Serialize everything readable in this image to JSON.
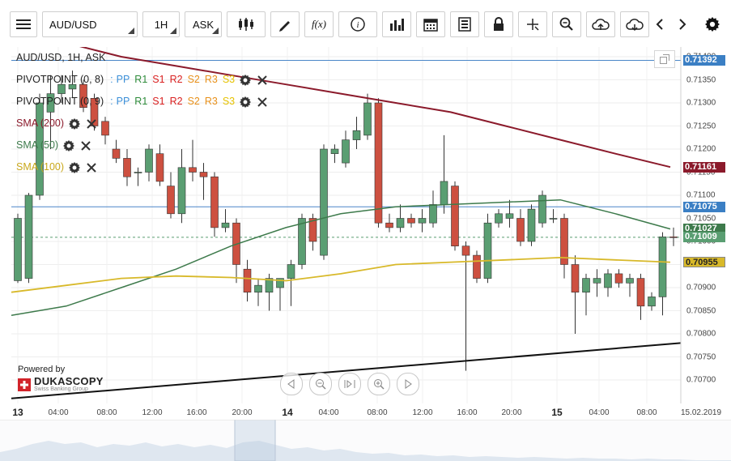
{
  "toolbar": {
    "menu_icon": "hamburger-icon",
    "symbol": "AUD/USD",
    "timeframe": "1H",
    "side": "ASK",
    "tools": [
      "candles-icon",
      "pencil-icon",
      "function-icon",
      "info-icon",
      "bars-icon",
      "calendar-icon",
      "report-icon",
      "lock-icon",
      "crosshair-icon",
      "zoom-icon",
      "cloud-upload-icon",
      "cloud-download-icon",
      "chevron-left-icon",
      "chevron-right-icon",
      "gear-icon"
    ],
    "fx_label": "f(x)"
  },
  "legend": {
    "title": "AUD/USD, 1H, ASK",
    "pivot1": "PIVOTPOINT (0, 8)",
    "pivot2": "PIVOTPOINT (0, 9)",
    "pivot_colon": ":",
    "pivot_levels": [
      {
        "label": "PP",
        "color": "#3b8fd8"
      },
      {
        "label": "R1",
        "color": "#2e8b3a"
      },
      {
        "label": "S1",
        "color": "#d92020"
      },
      {
        "label": "R2",
        "color": "#d92020"
      },
      {
        "label": "S2",
        "color": "#e8901a"
      },
      {
        "label": "R3",
        "color": "#e8901a"
      },
      {
        "label": "S3",
        "color": "#e6c200"
      }
    ],
    "sma200": "SMA (200)",
    "sma50": "SMA (50)",
    "sma100": "SMA (100)"
  },
  "colors": {
    "up": "#5a9e72",
    "down": "#cd5040",
    "sma200": "#8b1a2b",
    "sma50": "#3d7a4b",
    "sma100": "#d8b92a",
    "hline": "#4a86c8",
    "trend": "#111111"
  },
  "price_axis": {
    "ticks": [
      "0.71400",
      "0.71350",
      "0.71300",
      "0.71250",
      "0.71200",
      "0.71150",
      "0.71100",
      "0.71050",
      "0.71000",
      "0.70950",
      "0.70900",
      "0.70850",
      "0.70800",
      "0.70750",
      "0.70700"
    ],
    "tags": [
      {
        "label": "0.71392",
        "color": "#3b7fc4",
        "price": 0.71392
      },
      {
        "label": "0.71161",
        "color": "#8b1a2b",
        "price": 0.71161
      },
      {
        "label": "0.71075",
        "color": "#3b7fc4",
        "price": 0.71075
      },
      {
        "label": "0.71027",
        "color": "#3d7a4b",
        "price": 0.71027
      },
      {
        "label": "0.71009",
        "color": "#5a9e72",
        "price": 0.71009
      },
      {
        "label": "0.70955",
        "color": "#d8b92a",
        "price": 0.70955
      }
    ]
  },
  "time_axis": [
    {
      "label": "13",
      "day": true
    },
    {
      "label": "04:00"
    },
    {
      "label": "08:00"
    },
    {
      "label": "12:00"
    },
    {
      "label": "16:00"
    },
    {
      "label": "20:00"
    },
    {
      "label": "14",
      "day": true
    },
    {
      "label": "04:00"
    },
    {
      "label": "08:00"
    },
    {
      "label": "12:00"
    },
    {
      "label": "16:00"
    },
    {
      "label": "20:00"
    },
    {
      "label": "15",
      "day": true
    },
    {
      "label": "04:00"
    },
    {
      "label": "08:00"
    },
    {
      "label": "15.02.2019"
    }
  ],
  "branding": {
    "powered": "Powered by",
    "name": "DUKASCOPY",
    "tagline": "Swiss Banking Group"
  },
  "chart_data": {
    "type": "candlestick",
    "horizontal_lines": [
      0.71392,
      0.71075
    ],
    "candles": [
      {
        "o": 0.70915,
        "h": 0.7106,
        "l": 0.7091,
        "c": 0.7105
      },
      {
        "o": 0.7092,
        "h": 0.71105,
        "l": 0.7091,
        "c": 0.711
      },
      {
        "o": 0.711,
        "h": 0.7132,
        "l": 0.7109,
        "c": 0.713
      },
      {
        "o": 0.7128,
        "h": 0.7136,
        "l": 0.712,
        "c": 0.7132
      },
      {
        "o": 0.7132,
        "h": 0.7136,
        "l": 0.713,
        "c": 0.7134
      },
      {
        "o": 0.7133,
        "h": 0.7137,
        "l": 0.7131,
        "c": 0.7134
      },
      {
        "o": 0.7134,
        "h": 0.7135,
        "l": 0.7128,
        "c": 0.7129
      },
      {
        "o": 0.7131,
        "h": 0.7132,
        "l": 0.7124,
        "c": 0.7125
      },
      {
        "o": 0.7126,
        "h": 0.7127,
        "l": 0.7121,
        "c": 0.7123
      },
      {
        "o": 0.712,
        "h": 0.7122,
        "l": 0.7117,
        "c": 0.7118
      },
      {
        "o": 0.7118,
        "h": 0.712,
        "l": 0.7112,
        "c": 0.7114
      },
      {
        "o": 0.7115,
        "h": 0.7116,
        "l": 0.7112,
        "c": 0.7115
      },
      {
        "o": 0.7115,
        "h": 0.7121,
        "l": 0.7113,
        "c": 0.712
      },
      {
        "o": 0.7119,
        "h": 0.7121,
        "l": 0.7112,
        "c": 0.7113
      },
      {
        "o": 0.7112,
        "h": 0.7115,
        "l": 0.7105,
        "c": 0.7106
      },
      {
        "o": 0.7106,
        "h": 0.712,
        "l": 0.7104,
        "c": 0.7116
      },
      {
        "o": 0.7116,
        "h": 0.7122,
        "l": 0.7113,
        "c": 0.7115
      },
      {
        "o": 0.7115,
        "h": 0.7117,
        "l": 0.7109,
        "c": 0.7114
      },
      {
        "o": 0.7114,
        "h": 0.7115,
        "l": 0.7101,
        "c": 0.7103
      },
      {
        "o": 0.7103,
        "h": 0.7107,
        "l": 0.7102,
        "c": 0.7104
      },
      {
        "o": 0.7104,
        "h": 0.7105,
        "l": 0.7091,
        "c": 0.7095
      },
      {
        "o": 0.7094,
        "h": 0.7096,
        "l": 0.7087,
        "c": 0.7089
      },
      {
        "o": 0.7089,
        "h": 0.7092,
        "l": 0.7086,
        "c": 0.70905
      },
      {
        "o": 0.7089,
        "h": 0.7093,
        "l": 0.7085,
        "c": 0.7092
      },
      {
        "o": 0.709,
        "h": 0.7092,
        "l": 0.7085,
        "c": 0.7092
      },
      {
        "o": 0.7092,
        "h": 0.7096,
        "l": 0.7086,
        "c": 0.7095
      },
      {
        "o": 0.7095,
        "h": 0.7106,
        "l": 0.7094,
        "c": 0.7105
      },
      {
        "o": 0.7105,
        "h": 0.7106,
        "l": 0.7098,
        "c": 0.71
      },
      {
        "o": 0.7097,
        "h": 0.7121,
        "l": 0.7096,
        "c": 0.712
      },
      {
        "o": 0.7119,
        "h": 0.7121,
        "l": 0.7117,
        "c": 0.712
      },
      {
        "o": 0.7117,
        "h": 0.7124,
        "l": 0.7116,
        "c": 0.7122
      },
      {
        "o": 0.7122,
        "h": 0.7127,
        "l": 0.712,
        "c": 0.7124
      },
      {
        "o": 0.7123,
        "h": 0.7132,
        "l": 0.7122,
        "c": 0.713
      },
      {
        "o": 0.713,
        "h": 0.7131,
        "l": 0.7103,
        "c": 0.7104
      },
      {
        "o": 0.7104,
        "h": 0.7106,
        "l": 0.7102,
        "c": 0.7103
      },
      {
        "o": 0.7103,
        "h": 0.7108,
        "l": 0.7102,
        "c": 0.7105
      },
      {
        "o": 0.7105,
        "h": 0.7106,
        "l": 0.7103,
        "c": 0.7104
      },
      {
        "o": 0.7104,
        "h": 0.7107,
        "l": 0.7102,
        "c": 0.7105
      },
      {
        "o": 0.7104,
        "h": 0.7111,
        "l": 0.7103,
        "c": 0.7108
      },
      {
        "o": 0.7108,
        "h": 0.7123,
        "l": 0.7106,
        "c": 0.7113
      },
      {
        "o": 0.7112,
        "h": 0.7113,
        "l": 0.7098,
        "c": 0.7099
      },
      {
        "o": 0.7099,
        "h": 0.71,
        "l": 0.7072,
        "c": 0.7097
      },
      {
        "o": 0.7097,
        "h": 0.7098,
        "l": 0.7091,
        "c": 0.7092
      },
      {
        "o": 0.7092,
        "h": 0.7106,
        "l": 0.7091,
        "c": 0.7104
      },
      {
        "o": 0.7104,
        "h": 0.7107,
        "l": 0.7103,
        "c": 0.7106
      },
      {
        "o": 0.7105,
        "h": 0.7109,
        "l": 0.7103,
        "c": 0.7106
      },
      {
        "o": 0.7105,
        "h": 0.7107,
        "l": 0.7099,
        "c": 0.71
      },
      {
        "o": 0.71,
        "h": 0.7108,
        "l": 0.7099,
        "c": 0.7107
      },
      {
        "o": 0.7104,
        "h": 0.7111,
        "l": 0.7103,
        "c": 0.711
      },
      {
        "o": 0.7105,
        "h": 0.7107,
        "l": 0.7104,
        "c": 0.7105
      },
      {
        "o": 0.7105,
        "h": 0.7106,
        "l": 0.7092,
        "c": 0.7095
      },
      {
        "o": 0.7095,
        "h": 0.7097,
        "l": 0.708,
        "c": 0.7089
      },
      {
        "o": 0.7089,
        "h": 0.7093,
        "l": 0.7084,
        "c": 0.7092
      },
      {
        "o": 0.7091,
        "h": 0.7094,
        "l": 0.7088,
        "c": 0.7092
      },
      {
        "o": 0.709,
        "h": 0.7094,
        "l": 0.7088,
        "c": 0.7093
      },
      {
        "o": 0.7093,
        "h": 0.7094,
        "l": 0.709,
        "c": 0.7091
      },
      {
        "o": 0.7091,
        "h": 0.7093,
        "l": 0.7088,
        "c": 0.7092
      },
      {
        "o": 0.7092,
        "h": 0.7093,
        "l": 0.7083,
        "c": 0.7086
      },
      {
        "o": 0.7086,
        "h": 0.7089,
        "l": 0.7085,
        "c": 0.7088
      },
      {
        "o": 0.7088,
        "h": 0.7102,
        "l": 0.7084,
        "c": 0.7101
      },
      {
        "o": 0.7101,
        "h": 0.7103,
        "l": 0.7099,
        "c": 0.71009
      }
    ],
    "sma200": [
      0.7146,
      0.7143,
      0.714,
      0.7138,
      0.7136,
      0.7134,
      0.7132,
      0.713,
      0.7128,
      0.7125,
      0.7122,
      0.7119,
      0.71161
    ],
    "sma50": [
      0.7084,
      0.7086,
      0.709,
      0.7094,
      0.7099,
      0.7103,
      0.7106,
      0.71075,
      0.7108,
      0.71085,
      0.7109,
      0.7106,
      0.71027
    ],
    "sma100": [
      0.7089,
      0.70905,
      0.7092,
      0.70925,
      0.70922,
      0.70915,
      0.7093,
      0.7095,
      0.70955,
      0.7096,
      0.70965,
      0.7096,
      0.70955
    ],
    "trendline": [
      0.7066,
      0.7078
    ]
  }
}
